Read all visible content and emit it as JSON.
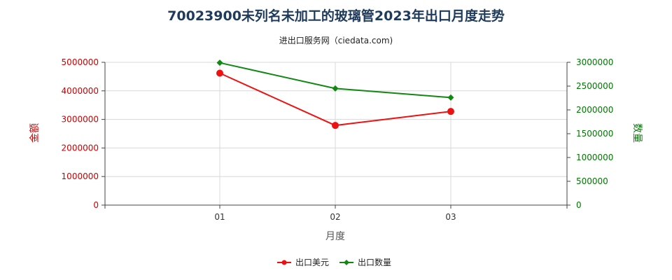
{
  "title": "70023900未列名未加工的玻璃管2023年出口月度走势",
  "subtitle": "进出口服务网（ciedata.com)",
  "chart_data": {
    "type": "line",
    "x": [
      "01",
      "02",
      "03"
    ],
    "xlabel": "月度",
    "ylabel_left": "金额",
    "ylabel_right": "数量",
    "ylim_left": [
      0,
      5000000
    ],
    "ylim_right": [
      0,
      3000000
    ],
    "yticks_left": [
      "0",
      "1000000",
      "2000000",
      "3000000",
      "4000000",
      "5000000"
    ],
    "yticks_right": [
      "0",
      "500000",
      "1000000",
      "1500000",
      "2000000",
      "2500000",
      "3000000"
    ],
    "grid": true,
    "legend_position": "bottom-center",
    "series": [
      {
        "name": "出口美元",
        "axis": "left",
        "color": "#ee1111",
        "marker": "circle",
        "values": [
          4620000,
          2790000,
          3280000
        ]
      },
      {
        "name": "出口数量",
        "axis": "right",
        "color": "#118811",
        "marker": "diamond",
        "values": [
          2990000,
          2450000,
          2260000
        ]
      }
    ]
  }
}
